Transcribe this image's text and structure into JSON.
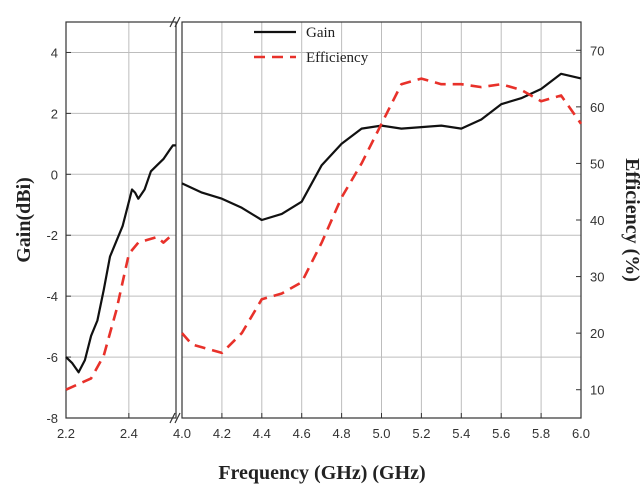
{
  "chart_data": {
    "type": "line",
    "title": "",
    "xlabel": "Frequency (GHz) (GHz)",
    "ylabel": "Gain(dBi)",
    "y2label": "Efficiency (%)",
    "grid": true,
    "legend_position": "top-center",
    "x_break": [
      2.55,
      4.0
    ],
    "xlim_left": [
      2.2,
      2.55
    ],
    "xlim_right": [
      4.0,
      6.0
    ],
    "ylim": [
      -8,
      5
    ],
    "y2lim": [
      5,
      75
    ],
    "x_ticks": [
      "2.2",
      "2.4",
      "4.0",
      "4.2",
      "4.4",
      "4.6",
      "4.8",
      "5.0",
      "5.2",
      "5.4",
      "5.6",
      "5.8",
      "6.0"
    ],
    "y_ticks": [
      "4",
      "2",
      "0",
      "-2",
      "-4",
      "-6",
      "-8"
    ],
    "y2_ticks": [
      "70",
      "60",
      "50",
      "40",
      "30",
      "20",
      "10"
    ],
    "series": [
      {
        "name": "Gain",
        "axis": "left",
        "color": "#111111",
        "dash": "solid",
        "segments": [
          [
            [
              2.2,
              -6.0
            ],
            [
              2.22,
              -6.2
            ],
            [
              2.24,
              -6.5
            ],
            [
              2.26,
              -6.1
            ],
            [
              2.28,
              -5.3
            ],
            [
              2.3,
              -4.8
            ],
            [
              2.32,
              -3.8
            ],
            [
              2.34,
              -2.7
            ],
            [
              2.36,
              -2.2
            ],
            [
              2.38,
              -1.7
            ],
            [
              2.4,
              -0.9
            ],
            [
              2.41,
              -0.5
            ],
            [
              2.42,
              -0.6
            ],
            [
              2.43,
              -0.8
            ],
            [
              2.45,
              -0.5
            ],
            [
              2.47,
              0.1
            ],
            [
              2.49,
              0.3
            ],
            [
              2.51,
              0.5
            ],
            [
              2.53,
              0.8
            ],
            [
              2.54,
              0.95
            ],
            [
              2.55,
              0.95
            ]
          ],
          [
            [
              4.0,
              -0.3
            ],
            [
              4.1,
              -0.6
            ],
            [
              4.2,
              -0.8
            ],
            [
              4.3,
              -1.1
            ],
            [
              4.4,
              -1.5
            ],
            [
              4.5,
              -1.3
            ],
            [
              4.6,
              -0.9
            ],
            [
              4.7,
              0.3
            ],
            [
              4.8,
              1.0
            ],
            [
              4.9,
              1.5
            ],
            [
              5.0,
              1.6
            ],
            [
              5.1,
              1.5
            ],
            [
              5.2,
              1.55
            ],
            [
              5.3,
              1.6
            ],
            [
              5.4,
              1.5
            ],
            [
              5.5,
              1.8
            ],
            [
              5.6,
              2.3
            ],
            [
              5.7,
              2.5
            ],
            [
              5.8,
              2.8
            ],
            [
              5.9,
              3.3
            ],
            [
              6.0,
              3.15
            ]
          ]
        ]
      },
      {
        "name": "Efficiency",
        "axis": "right",
        "color": "#e8312a",
        "dash": "dashed",
        "segments": [
          [
            [
              2.2,
              10
            ],
            [
              2.24,
              11
            ],
            [
              2.28,
              12
            ],
            [
              2.32,
              16
            ],
            [
              2.36,
              24
            ],
            [
              2.38,
              29
            ],
            [
              2.4,
              34
            ],
            [
              2.43,
              36
            ],
            [
              2.46,
              36.5
            ],
            [
              2.49,
              37
            ],
            [
              2.51,
              36
            ],
            [
              2.53,
              37
            ],
            [
              2.55,
              37
            ]
          ],
          [
            [
              4.0,
              20
            ],
            [
              4.05,
              18
            ],
            [
              4.1,
              17.5
            ],
            [
              4.2,
              16.5
            ],
            [
              4.3,
              20
            ],
            [
              4.4,
              26
            ],
            [
              4.5,
              27
            ],
            [
              4.6,
              29
            ],
            [
              4.7,
              36
            ],
            [
              4.8,
              44
            ],
            [
              4.9,
              50
            ],
            [
              5.0,
              57
            ],
            [
              5.1,
              64
            ],
            [
              5.2,
              65
            ],
            [
              5.3,
              64
            ],
            [
              5.4,
              64
            ],
            [
              5.5,
              63.5
            ],
            [
              5.6,
              64
            ],
            [
              5.7,
              63
            ],
            [
              5.8,
              61
            ],
            [
              5.9,
              62
            ],
            [
              6.0,
              57
            ]
          ]
        ]
      }
    ]
  }
}
